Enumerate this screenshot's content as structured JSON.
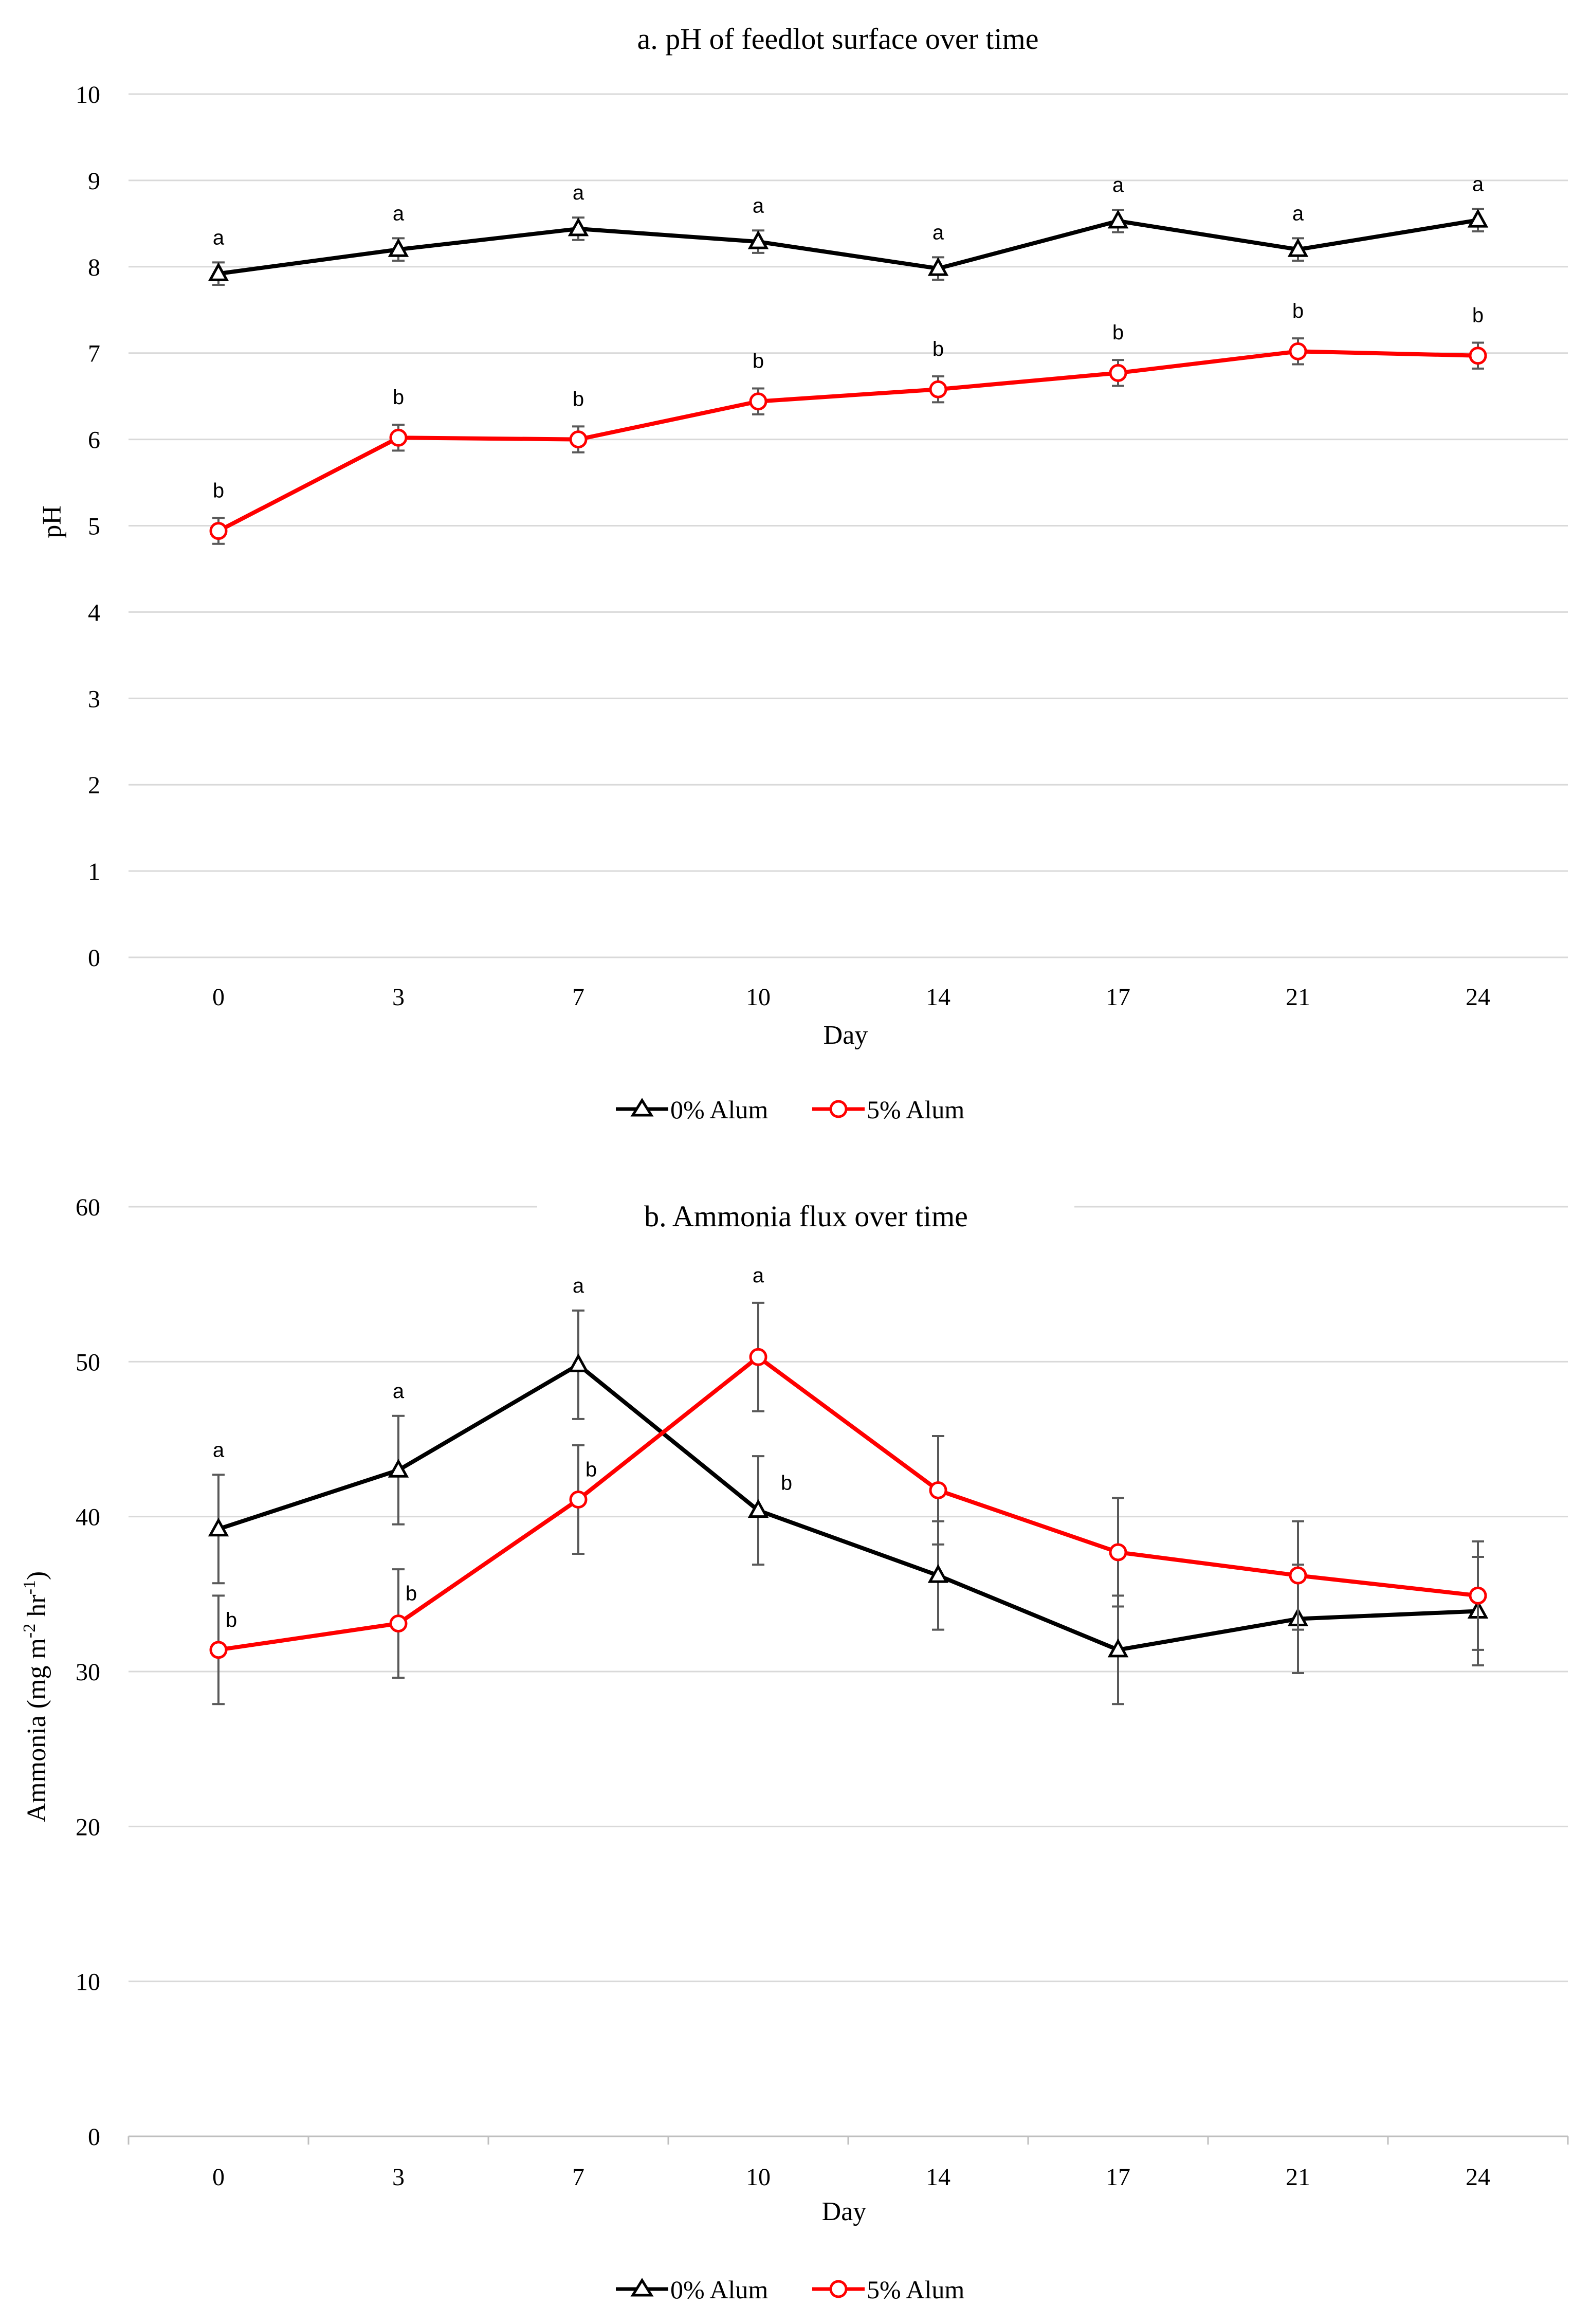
{
  "colors": {
    "alum0": "#000000",
    "alum5": "#ff0000",
    "grid": "#d9d9d9",
    "error_bar": "#595959"
  },
  "chart_data": [
    {
      "type": "line",
      "title": "a. pH of feedlot surface over time",
      "xlabel": "Day",
      "ylabel": "pH",
      "categories": [
        "0",
        "3",
        "7",
        "10",
        "14",
        "17",
        "21",
        "24"
      ],
      "ylim": [
        0,
        10
      ],
      "yticks": [
        "0",
        "1",
        "2",
        "3",
        "4",
        "5",
        "6",
        "7",
        "8",
        "9",
        "10"
      ],
      "grid": true,
      "legend": "bottom-center",
      "series": [
        {
          "name": "0% Alum",
          "marker": "triangle",
          "values": [
            7.92,
            8.2,
            8.44,
            8.29,
            7.98,
            8.53,
            8.2,
            8.54
          ],
          "errors": [
            0.13,
            0.13,
            0.13,
            0.13,
            0.13,
            0.13,
            0.13,
            0.13
          ],
          "labels": [
            "a",
            "a",
            "a",
            "a",
            "a",
            "a",
            "a",
            "a"
          ]
        },
        {
          "name": "5% Alum",
          "marker": "circle",
          "values": [
            4.94,
            6.02,
            6.0,
            6.44,
            6.58,
            6.77,
            7.02,
            6.97
          ],
          "errors": [
            0.15,
            0.15,
            0.15,
            0.15,
            0.15,
            0.15,
            0.15,
            0.15
          ],
          "labels": [
            "b",
            "b",
            "b",
            "b",
            "b",
            "b",
            "b",
            "b"
          ]
        }
      ]
    },
    {
      "type": "line",
      "title": "b. Ammonia flux over time",
      "xlabel": "Day",
      "ylabel": "Ammonia (mg m",
      "ylabel_sup1": "-2",
      "ylabel_mid": " hr",
      "ylabel_sup2": "-1",
      "ylabel_end": ")",
      "categories": [
        "0",
        "3",
        "7",
        "10",
        "14",
        "17",
        "21",
        "24"
      ],
      "ylim": [
        0,
        60
      ],
      "yticks": [
        "0",
        "10",
        "20",
        "30",
        "40",
        "50",
        "60"
      ],
      "grid": true,
      "legend": "bottom-center",
      "series": [
        {
          "name": "0% Alum",
          "marker": "triangle",
          "values": [
            39.2,
            43.0,
            49.8,
            40.4,
            36.2,
            31.4,
            33.4,
            33.9
          ],
          "errors": [
            3.5,
            3.5,
            3.5,
            3.5,
            3.5,
            3.5,
            3.5,
            3.5
          ],
          "labels": [
            "a",
            "a",
            "a",
            "b",
            "",
            "",
            "",
            ""
          ]
        },
        {
          "name": "5% Alum",
          "marker": "circle",
          "values": [
            31.4,
            33.1,
            41.1,
            50.3,
            41.7,
            37.7,
            36.2,
            34.9
          ],
          "errors": [
            3.5,
            3.5,
            3.5,
            3.5,
            3.5,
            3.5,
            3.5,
            3.5
          ],
          "labels": [
            "b",
            "b",
            "b",
            "a",
            "",
            "",
            "",
            ""
          ]
        }
      ]
    }
  ]
}
